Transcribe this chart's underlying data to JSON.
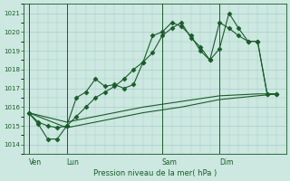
{
  "background_color": "#cce8e0",
  "grid_color": "#aacccc",
  "line_color": "#1a5c2a",
  "title": "Pression niveau de la mer( hPa )",
  "ylim": [
    1013.5,
    1021.5
  ],
  "yticks": [
    1014,
    1015,
    1016,
    1017,
    1018,
    1019,
    1020,
    1021
  ],
  "day_labels": [
    "Ven",
    "Lun",
    "Sam",
    "Dim"
  ],
  "day_positions": [
    0,
    4,
    14,
    20
  ],
  "vlines": [
    0,
    4,
    14,
    20
  ],
  "xlim": [
    -0.5,
    27
  ],
  "series1_x": [
    0,
    1,
    2,
    3,
    4,
    5,
    6,
    7,
    8,
    9,
    10,
    11,
    12,
    13,
    14,
    15,
    16,
    17,
    18,
    19,
    20,
    21,
    22,
    23,
    24,
    25,
    26
  ],
  "series1_y": [
    1015.7,
    1015.1,
    1014.3,
    1014.3,
    1015.0,
    1016.5,
    1016.8,
    1017.5,
    1017.1,
    1017.2,
    1017.0,
    1017.2,
    1018.4,
    1019.8,
    1020.0,
    1020.5,
    1020.3,
    1019.8,
    1019.0,
    1018.5,
    1019.1,
    1021.0,
    1020.2,
    1019.5,
    1019.5,
    1016.7,
    1016.7
  ],
  "series2_x": [
    0,
    1,
    2,
    3,
    4,
    5,
    6,
    7,
    8,
    9,
    10,
    11,
    12,
    13,
    14,
    15,
    16,
    17,
    18,
    19,
    20,
    21,
    22,
    23,
    24,
    25,
    26
  ],
  "series2_y": [
    1015.7,
    1015.2,
    1015.0,
    1014.9,
    1015.0,
    1015.5,
    1016.0,
    1016.5,
    1016.8,
    1017.1,
    1017.5,
    1018.0,
    1018.4,
    1018.9,
    1019.8,
    1020.2,
    1020.5,
    1019.7,
    1019.2,
    1018.5,
    1020.5,
    1020.2,
    1019.8,
    1019.5,
    1019.5,
    1016.7,
    1016.7
  ],
  "series3_x": [
    0,
    4,
    8,
    12,
    16,
    20,
    24,
    26
  ],
  "series3_y": [
    1015.7,
    1015.2,
    1015.6,
    1016.0,
    1016.3,
    1016.6,
    1016.7,
    1016.7
  ],
  "series4_x": [
    0,
    4,
    8,
    12,
    16,
    20,
    24,
    26
  ],
  "series4_y": [
    1015.7,
    1014.9,
    1015.3,
    1015.7,
    1016.0,
    1016.4,
    1016.6,
    1016.7
  ]
}
